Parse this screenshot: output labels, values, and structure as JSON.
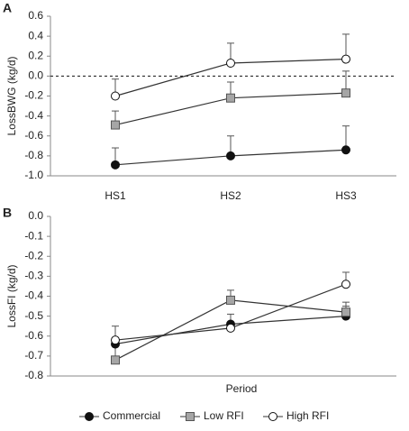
{
  "chart_data": [
    {
      "type": "line",
      "label": "A",
      "ylabel": "LossBWG (kg/d)",
      "categories": [
        "HS1",
        "HS2",
        "HS3"
      ],
      "ylim": [
        -1.0,
        0.6
      ],
      "yticks": [
        {
          "value": -1.0,
          "label": "-1.0"
        },
        -0.8,
        -0.6,
        -0.4,
        -0.2,
        {
          "value": 0,
          "label": "0.0"
        },
        0.2,
        0.4,
        0.6
      ],
      "reference_line": 0,
      "series": [
        {
          "name": "Commercial",
          "color": "#111111",
          "marker": "circle",
          "values": [
            -0.89,
            -0.8,
            -0.74
          ],
          "errors": [
            0.17,
            0.2,
            0.24
          ]
        },
        {
          "name": "Low RFI",
          "color": "#a6a6a6",
          "marker": "square",
          "values": [
            -0.49,
            -0.22,
            -0.17
          ],
          "errors": [
            0.14,
            0.16,
            0.22
          ]
        },
        {
          "name": "High RFI",
          "color": "#ffffff",
          "marker": "circle",
          "values": [
            -0.2,
            0.13,
            0.17
          ],
          "errors": [
            0.17,
            0.2,
            0.25
          ]
        }
      ]
    },
    {
      "type": "line",
      "label": "B",
      "ylabel": "LossFI (kg/d)",
      "xlabel": "Period",
      "categories": [
        null,
        null,
        null
      ],
      "ylim": [
        -0.8,
        0
      ],
      "yticks": [
        -0.8,
        -0.7,
        -0.6,
        -0.5,
        -0.4,
        -0.3,
        -0.2,
        -0.1,
        {
          "value": 0,
          "label": "0.0"
        }
      ],
      "series": [
        {
          "color": "#111111",
          "marker": "circle",
          "values": [
            -0.64,
            -0.54,
            -0.5
          ],
          "errors": [
            0.02,
            0.05,
            0.05
          ]
        },
        {
          "color": "#a6a6a6",
          "marker": "square",
          "values": [
            -0.72,
            -0.42,
            -0.48
          ],
          "errors": [
            0.08,
            0.05,
            0.05
          ]
        },
        {
          "color": "#ffffff",
          "marker": "circle",
          "values": [
            -0.62,
            -0.56,
            -0.34
          ],
          "errors": [
            0.07,
            0.03,
            0.06
          ]
        }
      ]
    }
  ]
}
